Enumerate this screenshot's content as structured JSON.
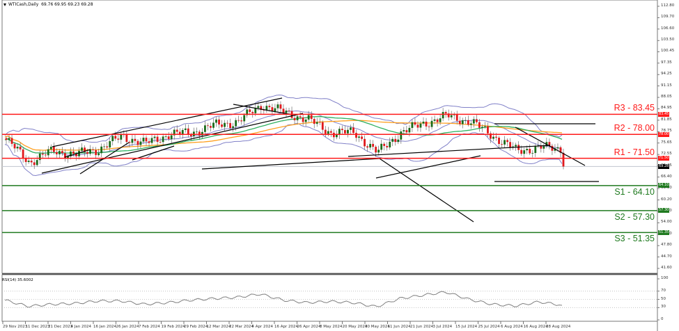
{
  "header": {
    "symbol": "WTICash,Daily",
    "ohlc": "69.76 69.95 69.23 69.28"
  },
  "colors": {
    "resistance": "#ff1a1a",
    "support": "#1f7a1f",
    "bull_candle": "#1a6b1a",
    "bear_candle": "#e0191d",
    "bollinger": "#8080c8",
    "ma_orange": "#ffa020",
    "ma_green": "#30b060",
    "trendline": "#000000",
    "rsi_line": "#7f7f7f",
    "current_price_tag": "#000000"
  },
  "price_axis": {
    "ticks": [
      "112.80",
      "109.70",
      "106.60",
      "103.50",
      "100.45",
      "97.35",
      "94.25",
      "91.15",
      "88.05",
      "84.95",
      "81.85",
      "78.75",
      "75.65",
      "72.55",
      "69.45",
      "66.40",
      "63.30",
      "60.20",
      "57.10",
      "54.00",
      "50.90",
      "47.80",
      "44.70",
      "41.60"
    ],
    "current_price": "69.28"
  },
  "levels": [
    {
      "id": "R3",
      "label": "R3 - 83.45",
      "value": 83.45,
      "tag": "83.45",
      "type": "resistance"
    },
    {
      "id": "R2",
      "label": "R2 - 78.00",
      "value": 78.0,
      "tag": "78.00",
      "type": "resistance"
    },
    {
      "id": "R1",
      "label": "R1 - 71.50",
      "value": 71.5,
      "tag": "71.50",
      "type": "resistance"
    },
    {
      "id": "S1",
      "label": "S1 - 64.10",
      "value": 64.1,
      "tag": "64.10",
      "type": "support"
    },
    {
      "id": "S2",
      "label": "S2 - 57.30",
      "value": 57.3,
      "tag": "57.30",
      "type": "support"
    },
    {
      "id": "S3",
      "label": "S3 - 51.35",
      "value": 51.35,
      "tag": "51.35",
      "type": "support"
    }
  ],
  "rsi": {
    "title": "RSI(14) 35.6002",
    "ticks": [
      "100",
      "70",
      "50",
      "30",
      "0"
    ]
  },
  "time_axis": {
    "labels": [
      "29 Nov 2023",
      "11 Dec 2023",
      "21 Dec 2023",
      "4 Jan 2024",
      "16 Jan 2024",
      "26 Jan 2024",
      "7 Feb 2024",
      "19 Feb 2024",
      "29 Feb 2024",
      "12 Mar 2024",
      "22 Mar 2024",
      "4 Apr 2024",
      "16 Apr 2024",
      "26 Apr 2024",
      "8 May 2024",
      "20 May 2024",
      "30 May 2024",
      "11 Jun 2024",
      "21 Jun 2024",
      "3 Jul 2024",
      "15 Jul 2024",
      "25 Jul 2024",
      "6 Aug 2024",
      "16 Aug 2024",
      "28 Aug 2024"
    ]
  },
  "chart_data": {
    "type": "candlestick",
    "title": "WTICash,Daily 69.76 69.95 69.23 69.28",
    "xlabel": "",
    "ylabel": "Price",
    "ylim": [
      41.6,
      112.8
    ],
    "grid": false,
    "categories": [
      "29 Nov 2023",
      "11 Dec 2023",
      "21 Dec 2023",
      "4 Jan 2024",
      "16 Jan 2024",
      "26 Jan 2024",
      "7 Feb 2024",
      "19 Feb 2024",
      "29 Feb 2024",
      "12 Mar 2024",
      "22 Mar 2024",
      "4 Apr 2024",
      "16 Apr 2024",
      "26 Apr 2024",
      "8 May 2024",
      "20 May 2024",
      "30 May 2024",
      "11 Jun 2024",
      "21 Jun 2024",
      "3 Jul 2024",
      "15 Jul 2024",
      "25 Jul 2024",
      "6 Aug 2024",
      "16 Aug 2024",
      "28 Aug 2024"
    ],
    "series": [
      {
        "name": "WTICash close (approx, per date label)",
        "values": [
          76.5,
          70.5,
          73.5,
          72.5,
          74.0,
          77.5,
          75.5,
          78.0,
          78.5,
          80.5,
          81.5,
          86.0,
          84.0,
          82.0,
          78.5,
          78.5,
          73.0,
          78.5,
          81.0,
          83.0,
          81.5,
          77.5,
          73.5,
          74.5,
          74.0
        ]
      },
      {
        "name": "RSI(14)",
        "values": [
          48,
          33,
          38,
          40,
          46,
          46,
          38,
          42,
          48,
          52,
          55,
          63,
          48,
          42,
          45,
          42,
          32,
          52,
          60,
          68,
          50,
          38,
          34,
          44,
          36
        ]
      }
    ],
    "last_ohlc": {
      "open": 69.76,
      "high": 69.95,
      "low": 69.23,
      "close": 69.28
    },
    "horizontal_levels": {
      "resistance": [
        83.45,
        78.0,
        71.5
      ],
      "support": [
        64.1,
        57.3,
        51.35
      ]
    },
    "indicators": [
      "Bollinger Bands",
      "Moving Average (orange)",
      "Moving Average (green)",
      "RSI(14)"
    ],
    "rsi_levels": [
      70,
      50,
      30
    ],
    "rsi_last": 35.6002,
    "annotations": [
      "R3 - 83.45",
      "R2 - 78.00",
      "R1 - 71.50",
      "S1 - 64.10",
      "S2 - 57.30",
      "S3 - 51.35"
    ]
  }
}
